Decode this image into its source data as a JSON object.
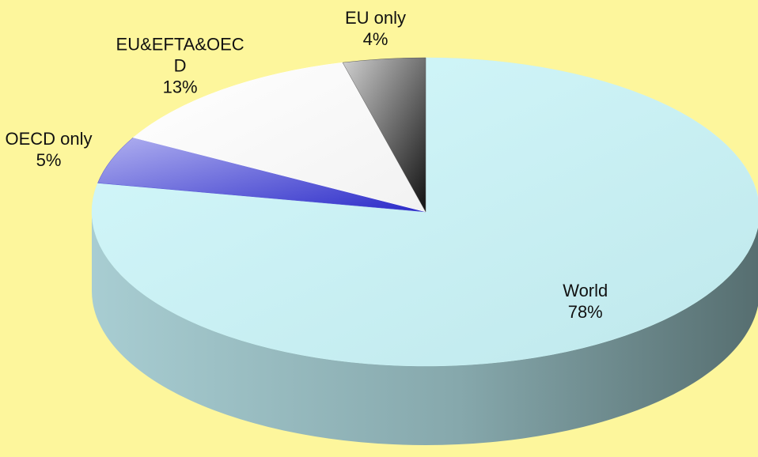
{
  "chart_data": {
    "type": "pie3d",
    "categories": [
      "World",
      "OECD only",
      "EU&EFTA&OECD",
      "EU only"
    ],
    "values": [
      78,
      5,
      13,
      4
    ],
    "value_labels": [
      "78%",
      "5%",
      "13%",
      "4%"
    ],
    "colors": [
      "#c9f3f7",
      "#5555d6",
      "#ffffff",
      "#5a5a5a"
    ]
  }
}
